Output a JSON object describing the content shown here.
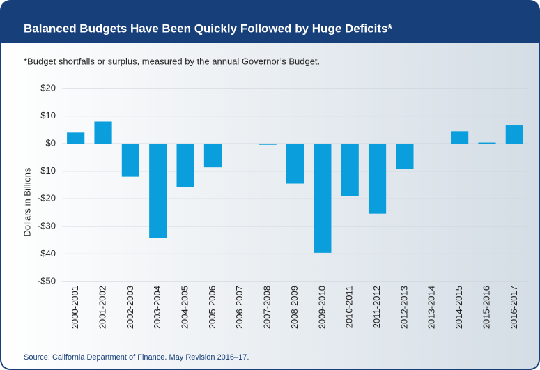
{
  "chart_data": {
    "type": "bar",
    "title": "Balanced Budgets Have Been Quickly Followed by Huge Deficits*",
    "subtitle": "*Budget shortfalls or surplus, measured by the annual Governor’s Budget.",
    "y_label": "Dollars in Billions",
    "source": "Source: California Department of Finance. May Revision 2016–17.",
    "categories": [
      "2000-2001",
      "2001-2002",
      "2002-2003",
      "2003-2004",
      "2004-2005",
      "2005-2006",
      "2006-2007",
      "2007-2008",
      "2008-2009",
      "2009-2010",
      "2010-2011",
      "2011-2012",
      "2012-2013",
      "2013-2014",
      "2014-2015",
      "2015-2016",
      "2016-2017"
    ],
    "values": [
      4,
      8,
      -12,
      -34.3,
      -15.7,
      -8.6,
      -0.2,
      -0.4,
      -14.5,
      -39.6,
      -19,
      -25.4,
      -9.2,
      0,
      4.5,
      0.4,
      6.6
    ],
    "color": "#0a9fdc",
    "ylim": [
      -50,
      20
    ],
    "yticks": [
      {
        "value": -50,
        "label": "-$50"
      },
      {
        "value": -40,
        "label": "-$40"
      },
      {
        "value": -30,
        "label": "-$30"
      },
      {
        "value": -20,
        "label": "-$20"
      },
      {
        "value": -10,
        "label": "-$10"
      },
      {
        "value": 0,
        "label": "$0"
      },
      {
        "value": 10,
        "label": "$10"
      },
      {
        "value": 20,
        "label": "$20"
      }
    ],
    "grid": true
  }
}
